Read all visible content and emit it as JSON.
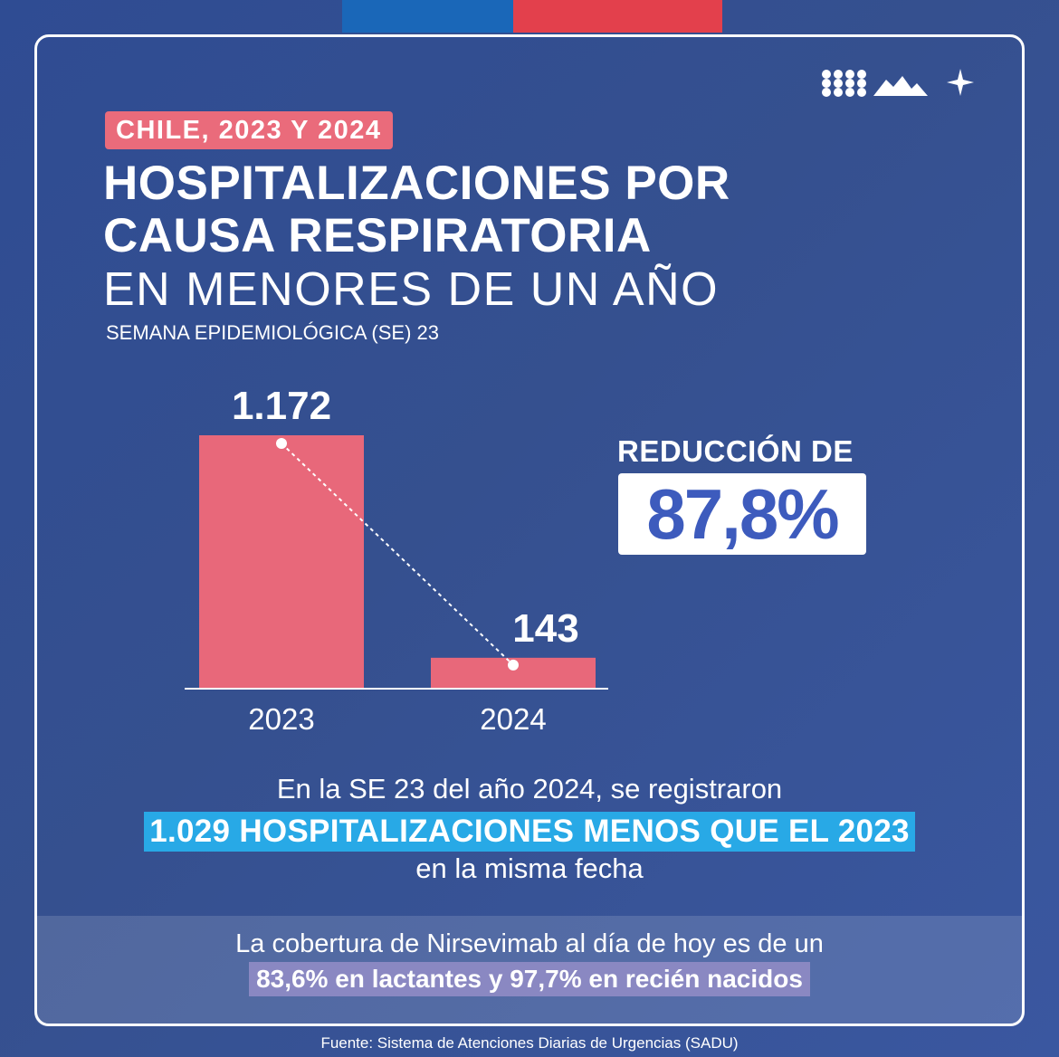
{
  "header": {
    "tag": "CHILE, 2023 Y 2024",
    "title_line1": "HOSPITALIZACIONES POR",
    "title_line2": "CAUSA RESPIRATORIA",
    "subtitle": "EN MENORES DE UN AÑO",
    "week": "SEMANA EPIDEMIOLÓGICA (SE) 23"
  },
  "highlight": {
    "label": "REDUCCIÓN DE",
    "value": "87,8%"
  },
  "note": {
    "line1": "En la SE 23 del año 2024, se registraron",
    "line2": "1.029 HOSPITALIZACIONES MENOS QUE EL 2023",
    "line3": "en la misma fecha"
  },
  "coverage": {
    "line1": "La cobertura de Nirsevimab al día de hoy es de un",
    "line2": "83,6% en lactantes y 97,7% en recién nacidos"
  },
  "source": "Fuente: Sistema de Atenciones Diarias de Urgencias (SADU)",
  "colors": {
    "background": "#35508f",
    "bar": "#e8687a",
    "tag": "#ea6b7b",
    "highlight_blue": "#28a9e6",
    "highlight_purple": "#8a88c2",
    "stripe_blue": "#1a67b8",
    "stripe_red": "#e3404c",
    "percent_text": "#3d5bbd"
  },
  "chart_data": {
    "type": "bar",
    "categories": [
      "2023",
      "2024"
    ],
    "values": [
      1172,
      143
    ],
    "data_labels": [
      "1.172",
      "143"
    ],
    "ylim": [
      0,
      1172
    ],
    "grid": false,
    "connector": "dotted line between bar tops"
  }
}
